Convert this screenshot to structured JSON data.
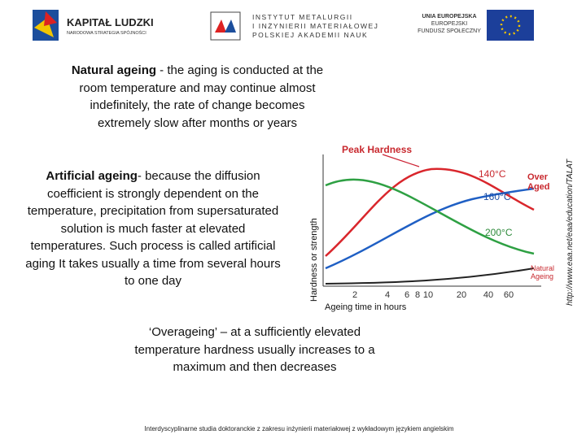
{
  "header": {
    "logo_left": {
      "title": "KAPITAŁ LUDZKI",
      "subtitle": "NARODOWA STRATEGIA SPÓJNOŚCI"
    },
    "logo_center": [
      "INSTYTUT METALURGII",
      "I INŻYNIERII MATERIAŁOWEJ",
      "POLSKIEJ AKADEMII NAUK"
    ],
    "logo_right": [
      "UNIA EUROPEJSKA",
      "EUROPEJSKI",
      "FUNDUSZ SPOŁECZNY"
    ]
  },
  "natural": {
    "term": "Natural ageing",
    "text": " - the aging is conducted at the room temperature and may continue almost indefinitely, the rate of change becomes extremely slow after months or years"
  },
  "artificial": {
    "term": "Artificial ageing",
    "text": "- because the diffusion coefficient is strongly dependent on the temperature, precipitation from supersaturated solution is much faster at elevated temperatures. Such process is called artificial aging  It takes usually a time from several hours to one day"
  },
  "figure": {
    "y_label": "Hardness or strength",
    "x_label": "Ageing time in hours",
    "x_ticks": [
      "2",
      "4",
      "6",
      "8",
      "10",
      "20",
      "40",
      "60"
    ],
    "peak": "Peak Hardness",
    "over_aged": "Over Aged",
    "natural_ageing": "Natural Ageing",
    "curves": [
      "140°C",
      "160°C",
      "200°C"
    ],
    "source": "http://www.eaa.net/eaa/education/TALAT"
  },
  "overageing": "‘Overageing’ – at a sufficiently elevated temperature hardness usually increases to a maximum and then decreases",
  "footer": "Interdyscyplinarne studia doktoranckie z zakresu inżynierii materiałowej z wykładowym językiem angielskim"
}
